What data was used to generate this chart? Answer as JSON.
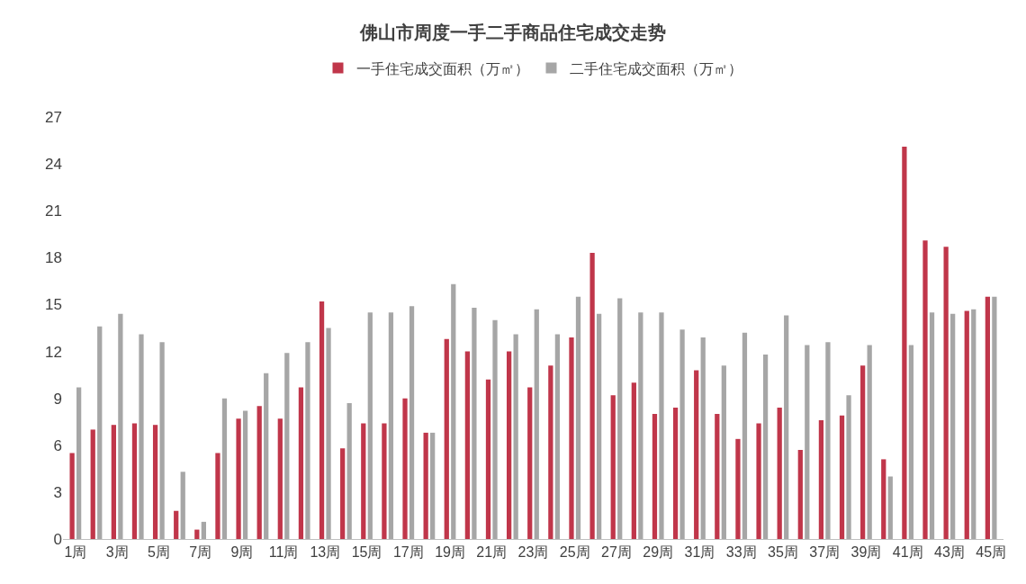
{
  "chart_data": {
    "type": "bar",
    "title": "佛山市周度一手二手商品住宅成交走势",
    "categories": [
      "1周",
      null,
      "3周",
      null,
      "5周",
      null,
      "7周",
      null,
      "9周",
      null,
      "11周",
      null,
      "13周",
      null,
      "15周",
      null,
      "17周",
      null,
      "19周",
      null,
      "21周",
      null,
      "23周",
      null,
      "25周",
      null,
      "27周",
      null,
      "29周",
      null,
      "31周",
      null,
      "33周",
      null,
      "35周",
      null,
      "37周",
      null,
      "39周",
      null,
      "41周",
      null,
      "43周",
      null,
      "45周"
    ],
    "series": [
      {
        "name": "一手住宅成交面积（万㎡）",
        "color": "#c0364a",
        "values": [
          5.5,
          7.0,
          7.3,
          7.4,
          7.3,
          1.8,
          0.6,
          5.5,
          7.7,
          8.5,
          7.7,
          9.7,
          15.2,
          5.8,
          7.4,
          7.4,
          9.0,
          6.8,
          12.8,
          12.0,
          10.2,
          12.0,
          9.7,
          11.1,
          12.9,
          18.3,
          9.2,
          10.0,
          8.0,
          8.4,
          10.8,
          8.0,
          6.4,
          7.4,
          8.4,
          5.7,
          7.6,
          7.9,
          11.1,
          5.1,
          25.1,
          19.1,
          18.7,
          14.6,
          15.5
        ]
      },
      {
        "name": "二手住宅成交面积（万㎡）",
        "color": "#a6a6a6",
        "values": [
          9.7,
          13.6,
          14.4,
          13.1,
          12.6,
          4.3,
          1.1,
          9.0,
          8.2,
          10.6,
          11.9,
          12.6,
          13.5,
          8.7,
          14.5,
          14.5,
          14.9,
          6.8,
          16.3,
          14.8,
          14.0,
          13.1,
          14.7,
          13.1,
          15.5,
          14.4,
          15.4,
          14.5,
          14.5,
          13.4,
          12.9,
          11.1,
          13.2,
          11.8,
          14.3,
          12.4,
          12.6,
          9.2,
          12.4,
          4.0,
          12.4,
          14.5,
          14.4,
          14.7,
          15.5
        ]
      }
    ],
    "ylim": [
      0,
      27
    ],
    "yticks": [
      0,
      3,
      6,
      9,
      12,
      15,
      18,
      21,
      24,
      27
    ],
    "grid": false,
    "legend": "top"
  }
}
